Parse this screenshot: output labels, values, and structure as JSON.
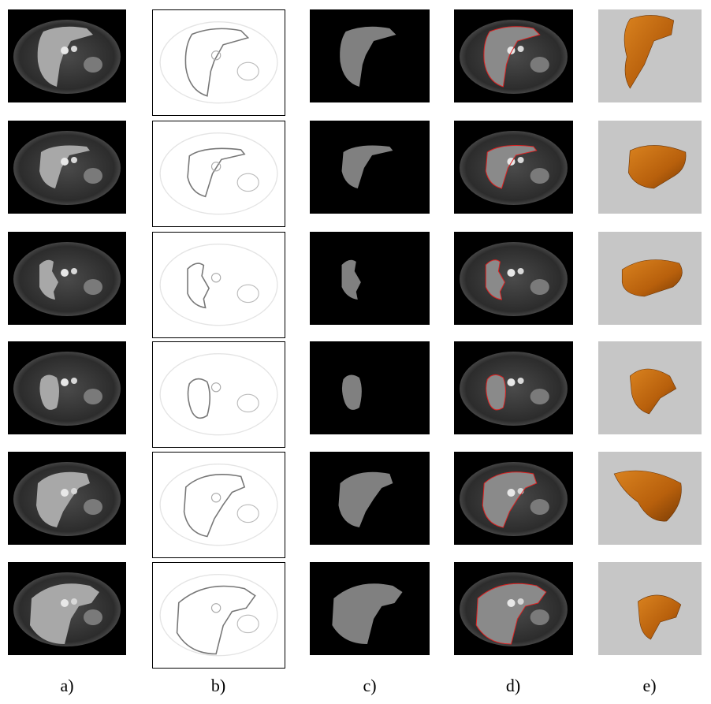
{
  "figure": {
    "column_labels": [
      "a)",
      "b)",
      "c)",
      "d)",
      "e)"
    ]
  }
}
